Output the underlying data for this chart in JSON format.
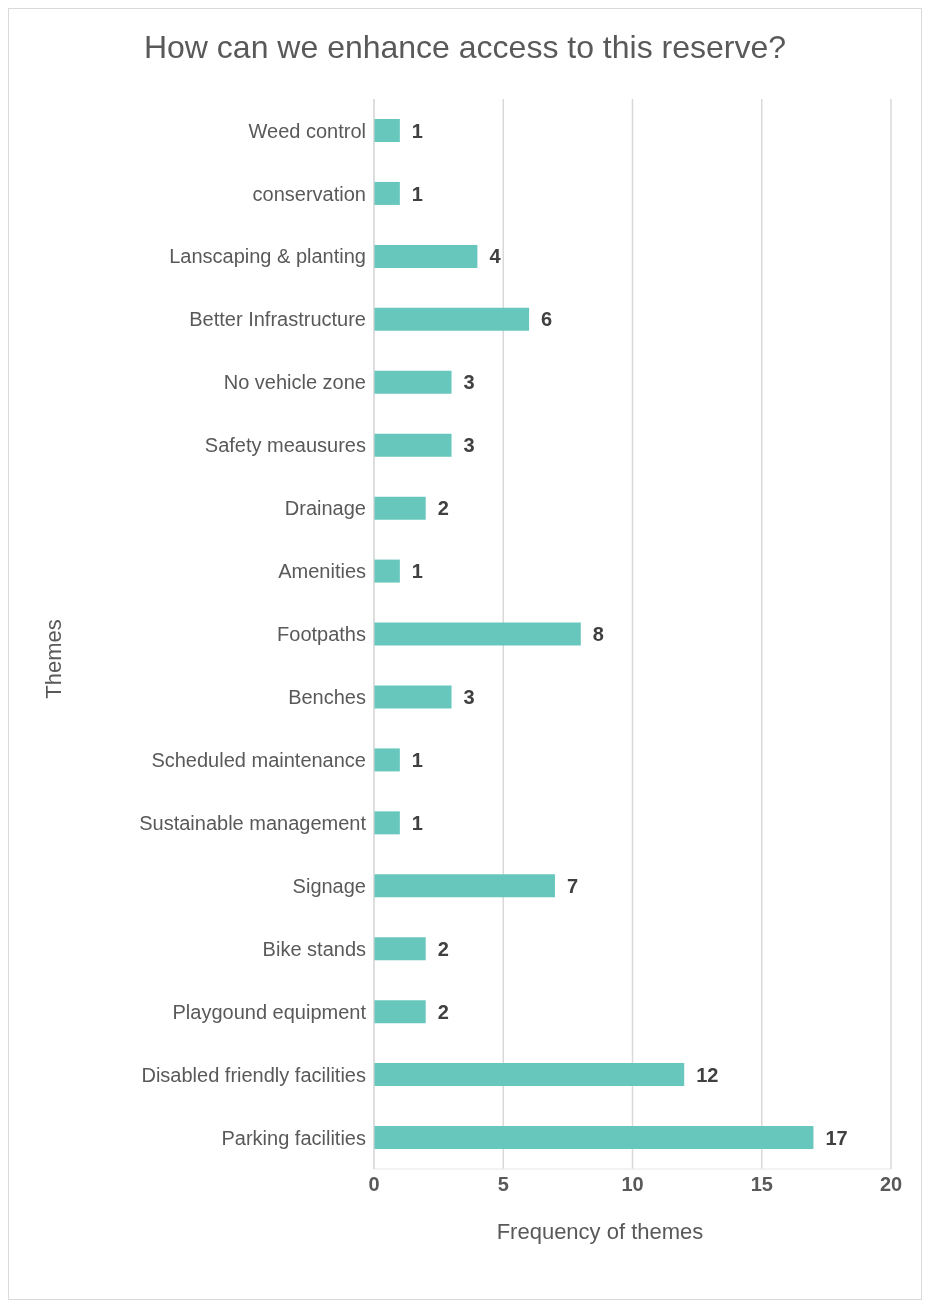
{
  "chart_data": {
    "type": "bar",
    "orientation": "horizontal",
    "title": "How can we enhance access to this reserve?",
    "xlabel": "Frequency of themes",
    "ylabel": "Themes",
    "categories": [
      "Weed control",
      "conservation",
      "Lanscaping & planting",
      "Better Infrastructure",
      "No vehicle zone",
      "Safety meausures",
      "Drainage",
      "Amenities",
      "Footpaths",
      "Benches",
      "Scheduled maintenance",
      "Sustainable management",
      "Signage",
      "Bike stands",
      "Playgound equipment",
      "Disabled friendly facilities",
      "Parking facilities"
    ],
    "values": [
      1,
      1,
      4,
      6,
      3,
      3,
      2,
      1,
      8,
      3,
      1,
      1,
      7,
      2,
      2,
      12,
      17
    ],
    "color": "#67c7bd",
    "xlim": [
      0,
      20
    ],
    "xticks": [
      0,
      5,
      10,
      15,
      20
    ],
    "grid": "x",
    "data_labels": true
  }
}
